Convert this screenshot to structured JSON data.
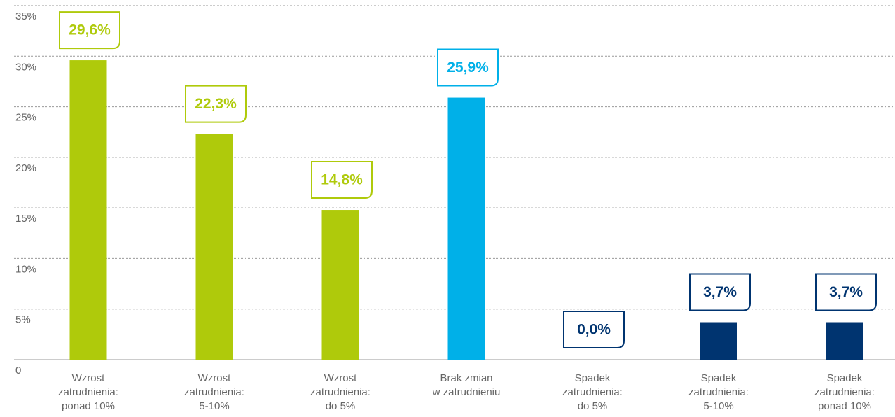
{
  "chart_data": {
    "type": "bar",
    "categories": [
      [
        "Wzrost",
        "zatrudnienia:",
        "ponad 10%"
      ],
      [
        "Wzrost",
        "zatrudnienia:",
        "5-10%"
      ],
      [
        "Wzrost",
        "zatrudnienia:",
        "do 5%"
      ],
      [
        "Brak zmian",
        "w zatrudnieniu"
      ],
      [
        "Spadek",
        "zatrudnienia:",
        "do 5%"
      ],
      [
        "Spadek",
        "zatrudnienia:",
        "5-10%"
      ],
      [
        "Spadek",
        "zatrudnienia:",
        "ponad 10%"
      ]
    ],
    "values": [
      29.6,
      22.3,
      14.8,
      25.9,
      0.0,
      3.7,
      3.7
    ],
    "value_labels": [
      "29,6%",
      "22,3%",
      "14,8%",
      "25,9%",
      "0,0%",
      "3,7%",
      "3,7%"
    ],
    "colors": [
      "#afca0b",
      "#afca0b",
      "#afca0b",
      "#00b0e8",
      "#003470",
      "#003470",
      "#003470"
    ],
    "ylim": [
      0,
      35
    ],
    "yticks": [
      0,
      {
        "value": 5,
        "label": "5%"
      },
      {
        "value": 10,
        "label": "10%"
      },
      {
        "value": 15,
        "label": "15%"
      },
      {
        "value": 20,
        "label": "20%"
      },
      {
        "value": 25,
        "label": "25%"
      },
      {
        "value": 30,
        "label": "30%"
      },
      {
        "value": 35,
        "label": "35%"
      }
    ],
    "grid": true
  }
}
